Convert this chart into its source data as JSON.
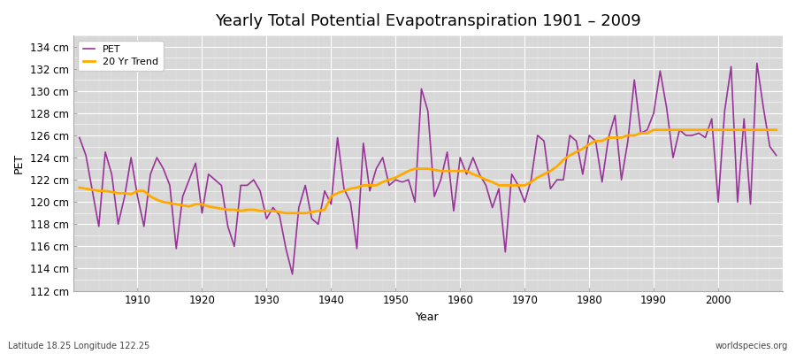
{
  "title": "Yearly Total Potential Evapotranspiration 1901 – 2009",
  "xlabel": "Year",
  "ylabel": "PET",
  "bottom_left_label": "Latitude 18.25 Longitude 122.25",
  "bottom_right_label": "worldspecies.org",
  "pet_color": "#993399",
  "trend_color": "#ffaa00",
  "fig_bg_color": "#ffffff",
  "plot_bg_color": "#d8d8d8",
  "ylim": [
    112,
    135
  ],
  "xlim": [
    1900,
    2010
  ],
  "ytick_step": 2,
  "years": [
    1901,
    1902,
    1903,
    1904,
    1905,
    1906,
    1907,
    1908,
    1909,
    1910,
    1911,
    1912,
    1913,
    1914,
    1915,
    1916,
    1917,
    1918,
    1919,
    1920,
    1921,
    1922,
    1923,
    1924,
    1925,
    1926,
    1927,
    1928,
    1929,
    1930,
    1931,
    1932,
    1933,
    1934,
    1935,
    1936,
    1937,
    1938,
    1939,
    1940,
    1941,
    1942,
    1943,
    1944,
    1945,
    1946,
    1947,
    1948,
    1949,
    1950,
    1951,
    1952,
    1953,
    1954,
    1955,
    1956,
    1957,
    1958,
    1959,
    1960,
    1961,
    1962,
    1963,
    1964,
    1965,
    1966,
    1967,
    1968,
    1969,
    1970,
    1971,
    1972,
    1973,
    1974,
    1975,
    1976,
    1977,
    1978,
    1979,
    1980,
    1981,
    1982,
    1983,
    1984,
    1985,
    1986,
    1987,
    1988,
    1989,
    1990,
    1991,
    1992,
    1993,
    1994,
    1995,
    1996,
    1997,
    1998,
    1999,
    2000,
    2001,
    2002,
    2003,
    2004,
    2005,
    2006,
    2007,
    2008,
    2009
  ],
  "pet_values": [
    125.8,
    124.2,
    121.0,
    117.8,
    124.5,
    122.5,
    118.0,
    120.5,
    124.0,
    120.5,
    117.8,
    122.5,
    124.0,
    123.0,
    121.5,
    115.8,
    120.5,
    122.0,
    123.5,
    119.0,
    122.5,
    122.0,
    121.5,
    117.8,
    116.0,
    121.5,
    121.5,
    122.0,
    121.0,
    118.5,
    119.5,
    118.8,
    115.8,
    113.5,
    119.5,
    121.5,
    118.5,
    118.0,
    121.0,
    119.8,
    125.8,
    121.2,
    120.0,
    115.8,
    125.3,
    121.0,
    123.0,
    124.0,
    121.5,
    122.0,
    121.8,
    122.0,
    120.0,
    130.2,
    128.2,
    120.5,
    122.0,
    124.5,
    119.2,
    124.0,
    122.5,
    124.0,
    122.5,
    121.5,
    119.5,
    121.2,
    115.5,
    122.5,
    121.5,
    120.0,
    122.0,
    126.0,
    125.5,
    121.2,
    122.0,
    122.0,
    126.0,
    125.5,
    122.5,
    126.0,
    125.5,
    121.8,
    125.8,
    127.8,
    122.0,
    125.5,
    131.0,
    126.2,
    126.5,
    128.0,
    131.8,
    128.5,
    124.0,
    126.5,
    126.0,
    126.0,
    126.2,
    125.8,
    127.5,
    120.0,
    128.2,
    132.2,
    120.0,
    127.5,
    119.8,
    132.5,
    128.5,
    125.0,
    124.2
  ],
  "trend_values": [
    121.3,
    121.2,
    121.1,
    121.0,
    121.0,
    120.9,
    120.8,
    120.8,
    120.7,
    121.0,
    121.0,
    120.5,
    120.2,
    120.0,
    119.9,
    119.8,
    119.7,
    119.6,
    119.8,
    119.8,
    119.6,
    119.5,
    119.4,
    119.3,
    119.3,
    119.2,
    119.3,
    119.3,
    119.2,
    119.2,
    119.2,
    119.1,
    119.0,
    119.0,
    119.0,
    119.0,
    119.1,
    119.2,
    119.3,
    120.5,
    120.8,
    121.0,
    121.2,
    121.3,
    121.5,
    121.5,
    121.5,
    121.8,
    122.0,
    122.2,
    122.5,
    122.8,
    123.0,
    123.0,
    123.0,
    122.9,
    122.8,
    122.8,
    122.8,
    122.8,
    122.8,
    122.5,
    122.3,
    122.0,
    121.8,
    121.5,
    121.5,
    121.5,
    121.5,
    121.5,
    121.8,
    122.2,
    122.5,
    122.8,
    123.2,
    123.8,
    124.2,
    124.5,
    124.8,
    125.2,
    125.5,
    125.5,
    125.8,
    125.8,
    125.8,
    126.0,
    126.0,
    126.2,
    126.2,
    126.5,
    126.5,
    126.5,
    126.5,
    126.5,
    126.5,
    126.5,
    126.5,
    126.5,
    126.5,
    126.5,
    126.5,
    126.5,
    126.5,
    126.5,
    126.5,
    126.5,
    126.5,
    126.5,
    126.5
  ]
}
